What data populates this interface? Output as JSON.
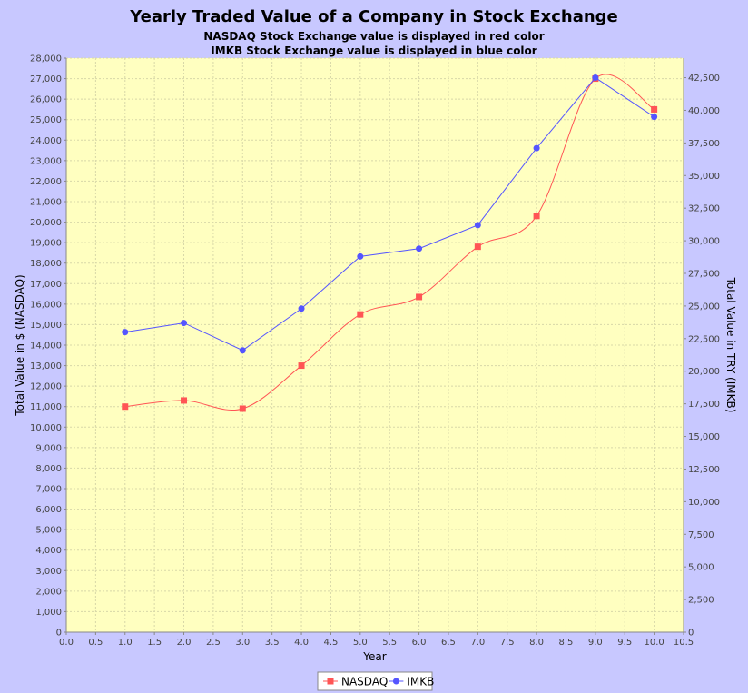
{
  "chart_data": {
    "type": "line",
    "title": "Yearly Traded Value of a Company in Stock Exchange",
    "subtitles": [
      "NASDAQ Stock Exchange value is displayed in red color",
      "IMKB Stock Exchange value is displayed in blue color"
    ],
    "xlabel": "Year",
    "ylabel_left": "Total Value in $ (NASDAQ)",
    "ylabel_right": "Total Value in TRY (IMKB)",
    "xlim": [
      0.0,
      10.5
    ],
    "ylim_left": [
      0,
      28000
    ],
    "ylim_right": [
      0,
      44000
    ],
    "x_ticks": [
      "0.0",
      "0.5",
      "1.0",
      "1.5",
      "2.0",
      "2.5",
      "3.0",
      "3.5",
      "4.0",
      "4.5",
      "5.0",
      "5.5",
      "6.0",
      "6.5",
      "7.0",
      "7.5",
      "8.0",
      "8.5",
      "9.0",
      "9.5",
      "10.0",
      "10.5"
    ],
    "y_ticks_left": [
      "0",
      "1,000",
      "2,000",
      "3,000",
      "4,000",
      "5,000",
      "6,000",
      "7,000",
      "8,000",
      "9,000",
      "10,000",
      "11,000",
      "12,000",
      "13,000",
      "14,000",
      "15,000",
      "16,000",
      "17,000",
      "18,000",
      "19,000",
      "20,000",
      "21,000",
      "22,000",
      "23,000",
      "24,000",
      "25,000",
      "26,000",
      "27,000",
      "28,000"
    ],
    "y_ticks_right": [
      "0",
      "2,500",
      "5,000",
      "7,500",
      "10,000",
      "12,500",
      "15,000",
      "17,500",
      "20,000",
      "22,500",
      "25,000",
      "27,500",
      "30,000",
      "32,500",
      "35,000",
      "37,500",
      "40,000",
      "42,500"
    ],
    "grid": true,
    "legend": "bottom",
    "series": [
      {
        "name": "NASDAQ",
        "axis": "left",
        "color": "#ff5555",
        "marker": "square",
        "smooth": true,
        "x": [
          1,
          2,
          3,
          4,
          5,
          6,
          7,
          8,
          9,
          10
        ],
        "y": [
          11000,
          11300,
          10900,
          13000,
          15500,
          16350,
          18800,
          20300,
          27000,
          25500
        ]
      },
      {
        "name": "IMKB",
        "axis": "right",
        "color": "#5555ff",
        "marker": "circle",
        "smooth": false,
        "x": [
          1,
          2,
          3,
          4,
          5,
          6,
          7,
          8,
          9,
          10
        ],
        "y": [
          23000,
          23700,
          21600,
          24800,
          28800,
          29400,
          31200,
          37100,
          42500,
          39500
        ]
      }
    ]
  },
  "colors": {
    "background": "#c8c8ff",
    "plot_background": "#ffffc0",
    "gridline": "#d8d8a8"
  }
}
